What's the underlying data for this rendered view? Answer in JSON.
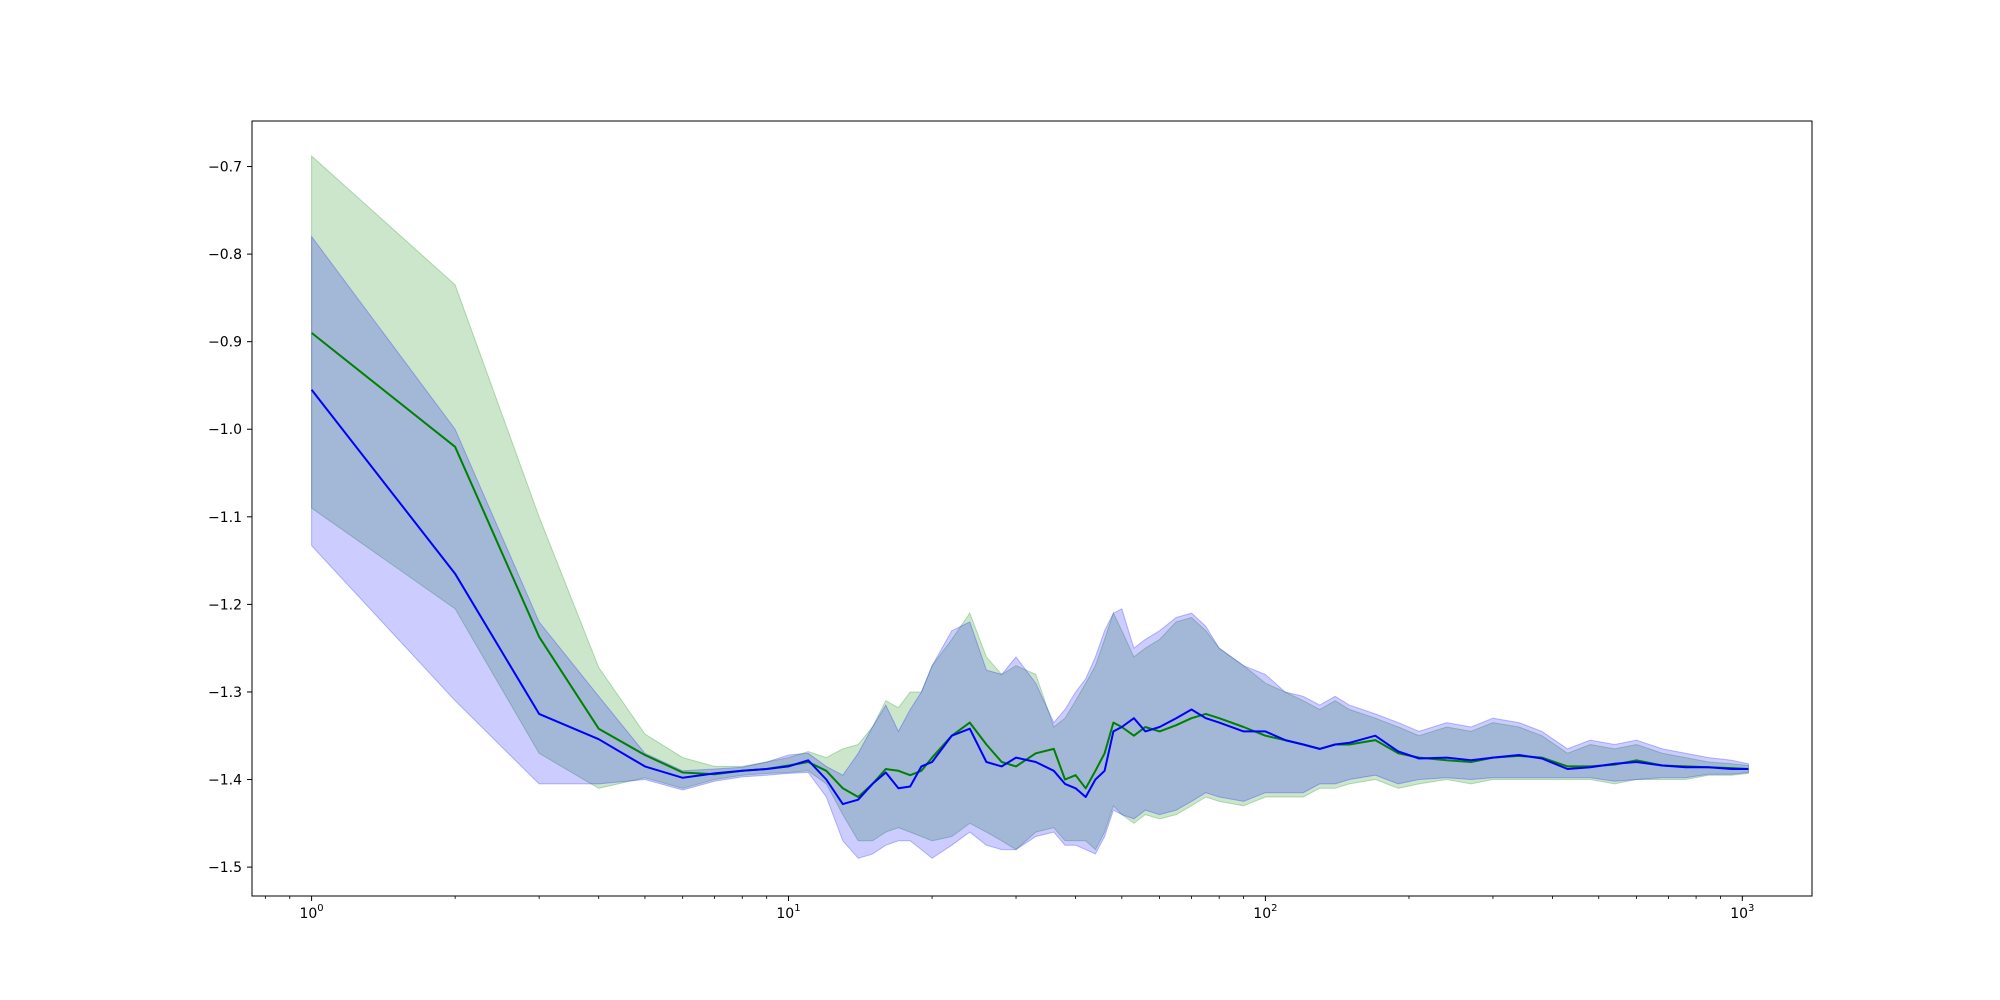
{
  "chart_data": {
    "type": "line",
    "title": "",
    "xlabel": "",
    "ylabel": "",
    "xscale": "log",
    "xlim": [
      0.75,
      1400
    ],
    "ylim": [
      -1.533,
      -0.648
    ],
    "grid": false,
    "legend": "none",
    "y_ticks": [
      {
        "value": -0.7,
        "label": "−0.7"
      },
      {
        "value": -0.8,
        "label": "−0.8"
      },
      {
        "value": -0.9,
        "label": "−0.9"
      },
      {
        "value": -1.0,
        "label": "−1.0"
      },
      {
        "value": -1.1,
        "label": "−1.1"
      },
      {
        "value": -1.2,
        "label": "−1.2"
      },
      {
        "value": -1.3,
        "label": "−1.3"
      },
      {
        "value": -1.4,
        "label": "−1.4"
      },
      {
        "value": -1.5,
        "label": "−1.5"
      }
    ],
    "x_ticks": [
      {
        "value": 1,
        "base": "10",
        "exp": "0"
      },
      {
        "value": 10,
        "base": "10",
        "exp": "1"
      },
      {
        "value": 100,
        "base": "10",
        "exp": "2"
      },
      {
        "value": 1000,
        "base": "10",
        "exp": "3"
      }
    ],
    "series": [
      {
        "color": "#008000",
        "band_color": "#008000",
        "band_opacity": 0.2,
        "x": [
          1,
          2,
          3,
          4,
          5,
          6,
          7,
          8,
          9,
          10,
          11,
          12,
          13,
          14,
          15,
          16,
          17,
          18,
          19,
          20,
          22,
          24,
          26,
          28,
          30,
          33,
          36,
          38,
          40,
          42,
          44,
          46,
          48,
          50,
          53,
          56,
          60,
          65,
          70,
          75,
          80,
          90,
          100,
          110,
          120,
          130,
          140,
          150,
          170,
          190,
          210,
          240,
          270,
          300,
          340,
          380,
          430,
          480,
          540,
          600,
          680,
          760,
          850,
          950,
          1030
        ],
        "y": [
          -0.89,
          -1.02,
          -1.237,
          -1.342,
          -1.372,
          -1.392,
          -1.394,
          -1.39,
          -1.388,
          -1.384,
          -1.38,
          -1.39,
          -1.41,
          -1.42,
          -1.405,
          -1.388,
          -1.39,
          -1.395,
          -1.39,
          -1.375,
          -1.35,
          -1.335,
          -1.36,
          -1.38,
          -1.385,
          -1.37,
          -1.365,
          -1.4,
          -1.395,
          -1.41,
          -1.39,
          -1.37,
          -1.335,
          -1.34,
          -1.35,
          -1.34,
          -1.345,
          -1.338,
          -1.33,
          -1.325,
          -1.33,
          -1.34,
          -1.35,
          -1.355,
          -1.36,
          -1.365,
          -1.36,
          -1.36,
          -1.355,
          -1.37,
          -1.375,
          -1.378,
          -1.38,
          -1.375,
          -1.373,
          -1.375,
          -1.385,
          -1.385,
          -1.383,
          -1.378,
          -1.384,
          -1.385,
          -1.386,
          -1.387,
          -1.388
        ],
        "y_upper": [
          -0.688,
          -0.835,
          -1.1,
          -1.272,
          -1.348,
          -1.375,
          -1.385,
          -1.385,
          -1.38,
          -1.375,
          -1.368,
          -1.375,
          -1.365,
          -1.36,
          -1.34,
          -1.31,
          -1.318,
          -1.3,
          -1.3,
          -1.27,
          -1.24,
          -1.21,
          -1.26,
          -1.28,
          -1.27,
          -1.28,
          -1.34,
          -1.33,
          -1.31,
          -1.29,
          -1.27,
          -1.24,
          -1.21,
          -1.23,
          -1.26,
          -1.25,
          -1.24,
          -1.22,
          -1.215,
          -1.23,
          -1.25,
          -1.27,
          -1.29,
          -1.3,
          -1.31,
          -1.32,
          -1.31,
          -1.32,
          -1.33,
          -1.34,
          -1.35,
          -1.34,
          -1.345,
          -1.335,
          -1.34,
          -1.35,
          -1.37,
          -1.36,
          -1.365,
          -1.36,
          -1.37,
          -1.375,
          -1.38,
          -1.382,
          -1.384
        ],
        "y_lower": [
          -1.09,
          -1.205,
          -1.37,
          -1.41,
          -1.398,
          -1.41,
          -1.4,
          -1.395,
          -1.393,
          -1.392,
          -1.39,
          -1.405,
          -1.44,
          -1.47,
          -1.47,
          -1.46,
          -1.455,
          -1.46,
          -1.465,
          -1.47,
          -1.465,
          -1.45,
          -1.46,
          -1.47,
          -1.48,
          -1.46,
          -1.455,
          -1.47,
          -1.47,
          -1.47,
          -1.48,
          -1.46,
          -1.43,
          -1.44,
          -1.45,
          -1.44,
          -1.445,
          -1.44,
          -1.43,
          -1.42,
          -1.425,
          -1.43,
          -1.42,
          -1.42,
          -1.42,
          -1.41,
          -1.41,
          -1.405,
          -1.4,
          -1.41,
          -1.405,
          -1.4,
          -1.405,
          -1.4,
          -1.4,
          -1.4,
          -1.4,
          -1.4,
          -1.405,
          -1.4,
          -1.4,
          -1.4,
          -1.395,
          -1.395,
          -1.393
        ]
      },
      {
        "color": "#0000ff",
        "band_color": "#0000ff",
        "band_opacity": 0.2,
        "x": [
          1,
          2,
          3,
          4,
          5,
          6,
          7,
          8,
          9,
          10,
          11,
          12,
          13,
          14,
          15,
          16,
          17,
          18,
          19,
          20,
          22,
          24,
          26,
          28,
          30,
          33,
          36,
          38,
          40,
          42,
          44,
          46,
          48,
          50,
          53,
          56,
          60,
          65,
          70,
          75,
          80,
          90,
          100,
          110,
          120,
          130,
          140,
          150,
          170,
          190,
          210,
          240,
          270,
          300,
          340,
          380,
          430,
          480,
          540,
          600,
          680,
          760,
          850,
          950,
          1030
        ],
        "y": [
          -0.955,
          -1.165,
          -1.325,
          -1.354,
          -1.385,
          -1.398,
          -1.393,
          -1.39,
          -1.388,
          -1.385,
          -1.378,
          -1.4,
          -1.428,
          -1.423,
          -1.405,
          -1.392,
          -1.41,
          -1.408,
          -1.385,
          -1.38,
          -1.35,
          -1.342,
          -1.38,
          -1.385,
          -1.375,
          -1.38,
          -1.39,
          -1.405,
          -1.41,
          -1.42,
          -1.4,
          -1.39,
          -1.345,
          -1.34,
          -1.33,
          -1.345,
          -1.34,
          -1.33,
          -1.32,
          -1.33,
          -1.335,
          -1.345,
          -1.345,
          -1.355,
          -1.36,
          -1.365,
          -1.36,
          -1.358,
          -1.35,
          -1.368,
          -1.376,
          -1.375,
          -1.378,
          -1.375,
          -1.372,
          -1.376,
          -1.388,
          -1.386,
          -1.382,
          -1.38,
          -1.384,
          -1.386,
          -1.386,
          -1.388,
          -1.388
        ],
        "y_upper": [
          -0.78,
          -1.0,
          -1.22,
          -1.305,
          -1.37,
          -1.39,
          -1.388,
          -1.386,
          -1.38,
          -1.372,
          -1.37,
          -1.385,
          -1.395,
          -1.37,
          -1.34,
          -1.315,
          -1.345,
          -1.32,
          -1.3,
          -1.27,
          -1.23,
          -1.22,
          -1.275,
          -1.28,
          -1.26,
          -1.29,
          -1.335,
          -1.32,
          -1.3,
          -1.285,
          -1.26,
          -1.23,
          -1.21,
          -1.205,
          -1.25,
          -1.24,
          -1.23,
          -1.215,
          -1.21,
          -1.225,
          -1.25,
          -1.27,
          -1.28,
          -1.3,
          -1.305,
          -1.315,
          -1.305,
          -1.315,
          -1.325,
          -1.335,
          -1.345,
          -1.335,
          -1.34,
          -1.33,
          -1.335,
          -1.345,
          -1.365,
          -1.355,
          -1.36,
          -1.355,
          -1.365,
          -1.37,
          -1.375,
          -1.378,
          -1.382
        ],
        "y_lower": [
          -1.133,
          -1.31,
          -1.405,
          -1.405,
          -1.4,
          -1.412,
          -1.402,
          -1.397,
          -1.395,
          -1.393,
          -1.392,
          -1.42,
          -1.47,
          -1.49,
          -1.485,
          -1.475,
          -1.47,
          -1.47,
          -1.48,
          -1.49,
          -1.475,
          -1.46,
          -1.475,
          -1.48,
          -1.48,
          -1.465,
          -1.46,
          -1.475,
          -1.475,
          -1.48,
          -1.485,
          -1.465,
          -1.435,
          -1.44,
          -1.445,
          -1.435,
          -1.44,
          -1.435,
          -1.425,
          -1.415,
          -1.42,
          -1.425,
          -1.415,
          -1.415,
          -1.415,
          -1.405,
          -1.405,
          -1.4,
          -1.395,
          -1.405,
          -1.4,
          -1.398,
          -1.4,
          -1.398,
          -1.398,
          -1.398,
          -1.398,
          -1.398,
          -1.402,
          -1.4,
          -1.398,
          -1.398,
          -1.394,
          -1.394,
          -1.392
        ]
      }
    ]
  }
}
